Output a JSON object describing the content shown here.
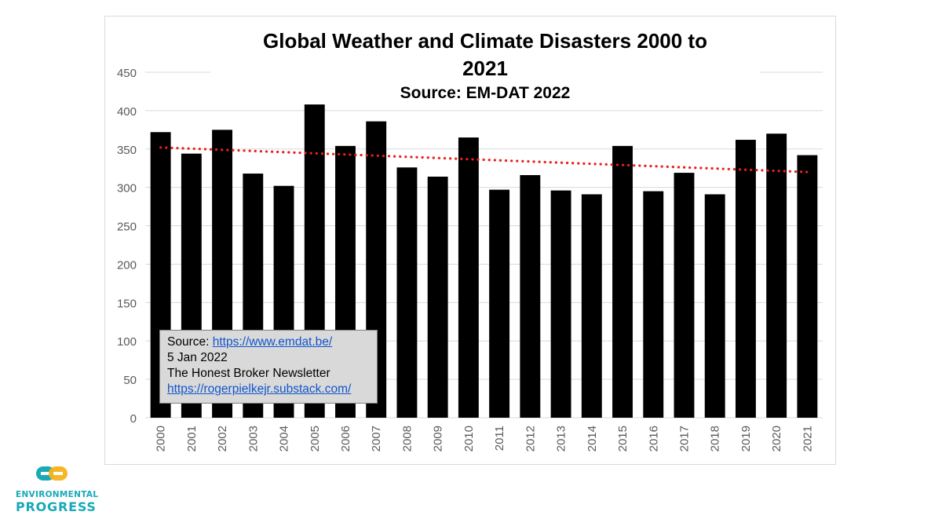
{
  "chart_data": {
    "type": "bar",
    "title_line1": "Global Weather and Climate Disasters 2000 to",
    "title_line2": "2021",
    "subtitle": "Source:  EM-DAT 2022",
    "categories": [
      "2000",
      "2001",
      "2002",
      "2003",
      "2004",
      "2005",
      "2006",
      "2007",
      "2008",
      "2009",
      "2010",
      "2011",
      "2012",
      "2013",
      "2014",
      "2015",
      "2016",
      "2017",
      "2018",
      "2019",
      "2020",
      "2021"
    ],
    "values": [
      372,
      344,
      375,
      318,
      302,
      408,
      354,
      386,
      326,
      314,
      365,
      297,
      316,
      296,
      291,
      354,
      295,
      319,
      291,
      362,
      370,
      342
    ],
    "ylim": [
      0,
      450
    ],
    "yticks": [
      "0",
      "50",
      "100",
      "150",
      "200",
      "250",
      "300",
      "350",
      "400",
      "450"
    ],
    "trendline": {
      "type": "linear",
      "start": 352,
      "end": 320
    },
    "bar_color": "#000000",
    "trend_color": "#e8201c",
    "grid": true,
    "xlabel": "",
    "ylabel": ""
  },
  "source_box": {
    "prefix": "Source: ",
    "url": "https://www.emdat.be/",
    "date": "5 Jan 2022",
    "newsletter": "The Honest Broker Newsletter",
    "newsletter_url": "https://rogerpielkejr.substack.com/"
  },
  "logo": {
    "line1": "ENVIRONMENTAL",
    "line2": "PROGRESS",
    "colors": {
      "teal": "#1aa9b8",
      "yellow": "#f7b21b"
    }
  }
}
